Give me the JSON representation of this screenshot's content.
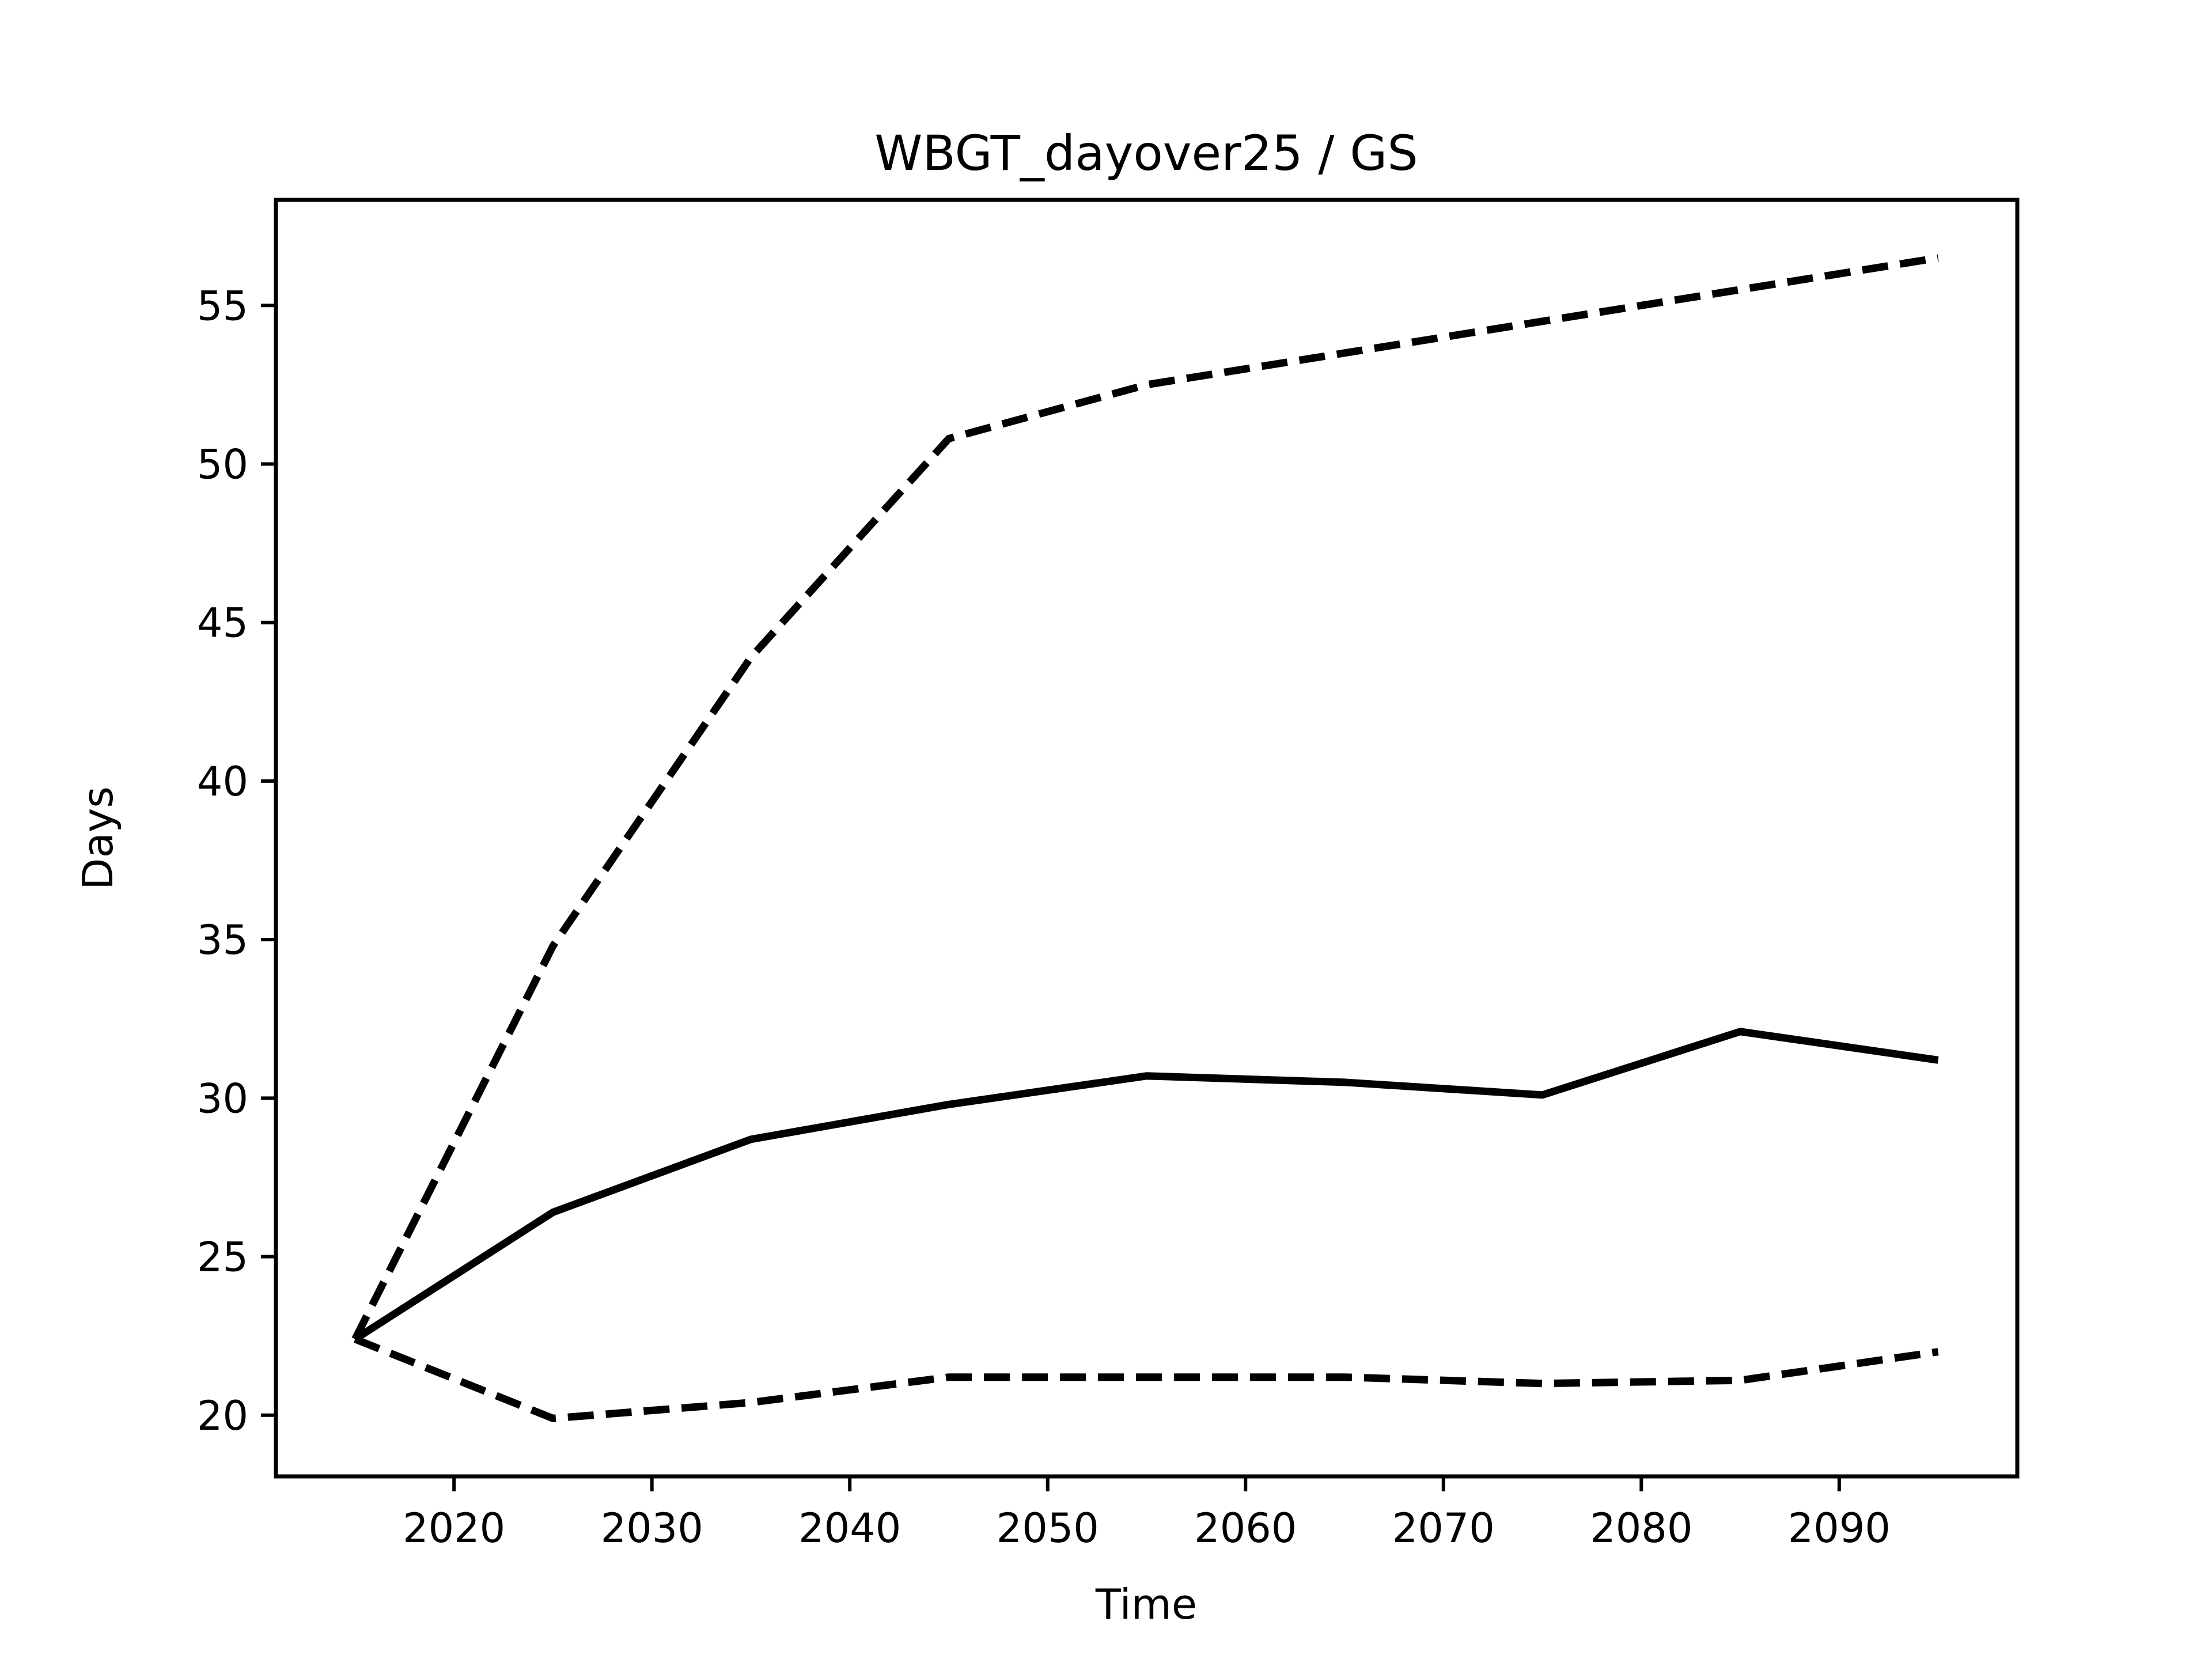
{
  "figure": {
    "background": "#ffffff",
    "foreground": "#000000"
  },
  "chart_data": {
    "type": "line",
    "title": "WBGT_dayover25 / GS",
    "xlabel": "Time",
    "ylabel": "Days",
    "grid": false,
    "legend": "none",
    "x": [
      2015,
      2025,
      2035,
      2045,
      2055,
      2065,
      2075,
      2085,
      2095
    ],
    "series": [
      {
        "name": "upper-bound-dashed",
        "style": "dashed",
        "color": "#000000",
        "values": [
          22.4,
          34.8,
          43.9,
          50.8,
          52.5,
          53.5,
          54.5,
          55.5,
          56.5
        ]
      },
      {
        "name": "central-solid",
        "style": "solid",
        "color": "#000000",
        "values": [
          22.4,
          26.4,
          28.7,
          29.8,
          30.7,
          30.5,
          30.1,
          32.1,
          31.2
        ]
      },
      {
        "name": "lower-bound-dashed",
        "style": "dashed",
        "color": "#000000",
        "values": [
          22.4,
          19.9,
          20.4,
          21.2,
          21.2,
          21.2,
          21.0,
          21.1,
          22.0
        ]
      }
    ],
    "xticks": [
      2020,
      2030,
      2040,
      2050,
      2060,
      2070,
      2080,
      2090
    ],
    "yticks": [
      20,
      25,
      30,
      35,
      40,
      45,
      50,
      55
    ],
    "xlim": [
      2011,
      2099
    ],
    "ylim": [
      18.07,
      58.33
    ]
  }
}
